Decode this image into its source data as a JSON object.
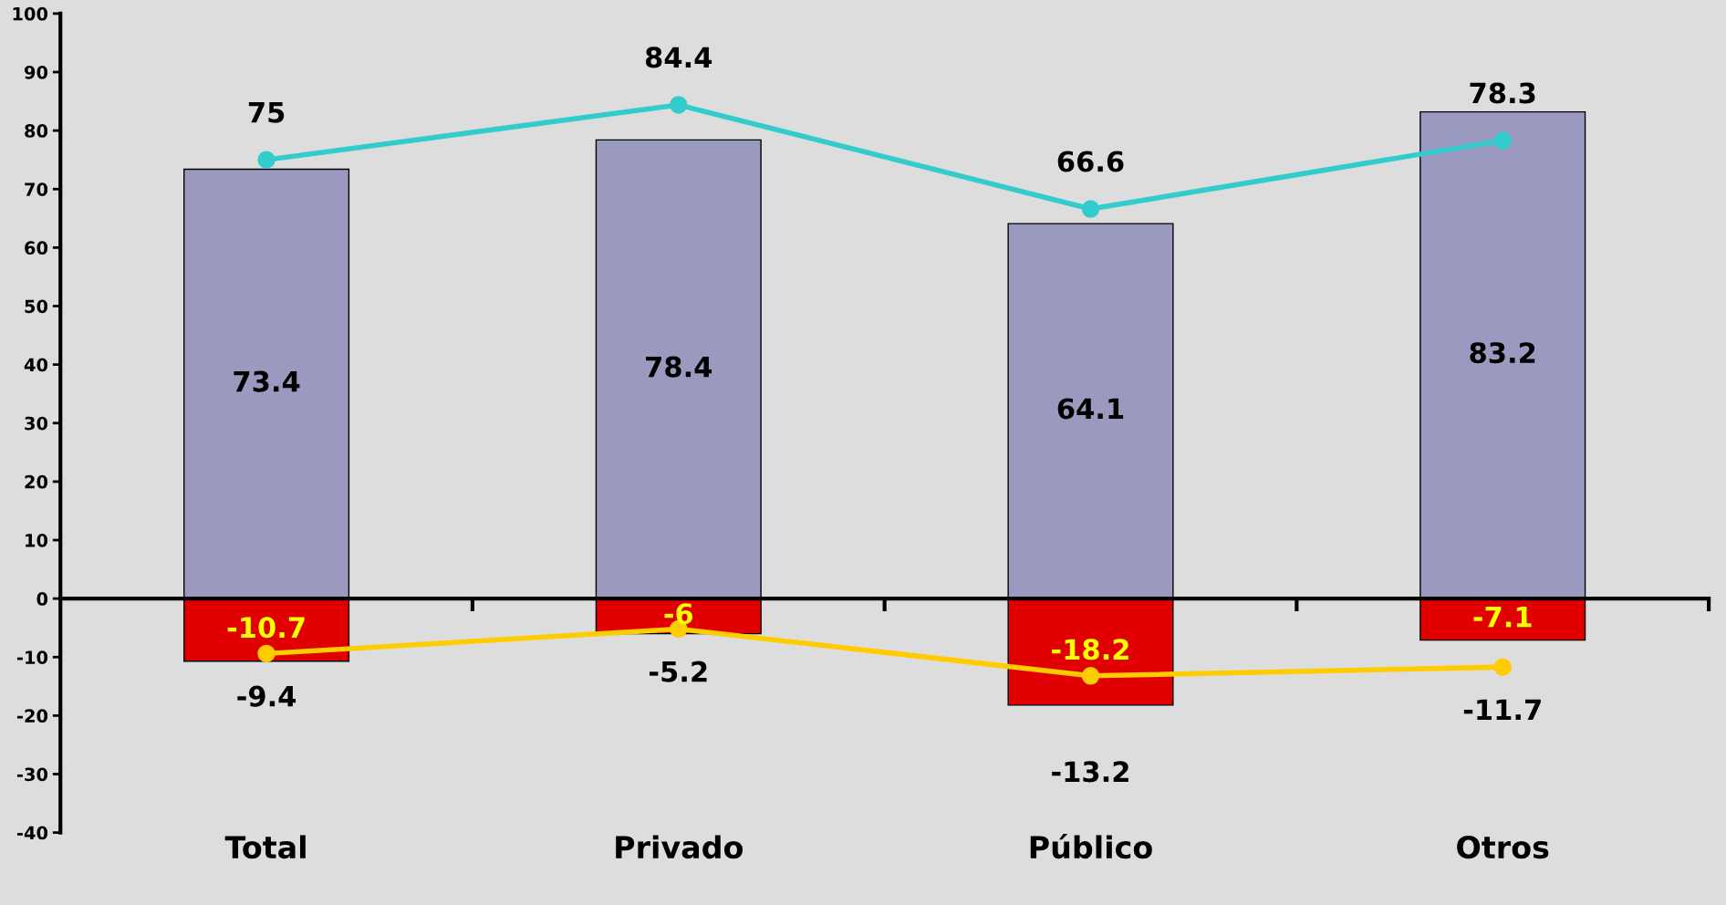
{
  "chart_data": {
    "type": "bar",
    "categories": [
      "Total",
      "Privado",
      "Público",
      "Otros"
    ],
    "series": [
      {
        "color": "#9a9ac0",
        "values": [
          73.4,
          78.4,
          64.1,
          83.2
        ]
      },
      {
        "color": "#e00000",
        "values": [
          -10.7,
          -6,
          -18.2,
          -7.1
        ]
      },
      {
        "type": "line",
        "color": "#33cccc",
        "values": [
          75,
          84.4,
          66.6,
          78.3
        ]
      },
      {
        "type": "line",
        "color": "#ffcc00",
        "values": [
          -9.4,
          -5.2,
          -13.2,
          -11.7
        ]
      }
    ],
    "ylim": [
      -40,
      100
    ],
    "yticks": [
      -40,
      -30,
      -20,
      -10,
      0,
      10,
      20,
      30,
      40,
      50,
      60,
      70,
      80,
      90,
      100
    ],
    "stacked": true,
    "data_labels": true,
    "marker": "circle",
    "line_style": "solid"
  }
}
